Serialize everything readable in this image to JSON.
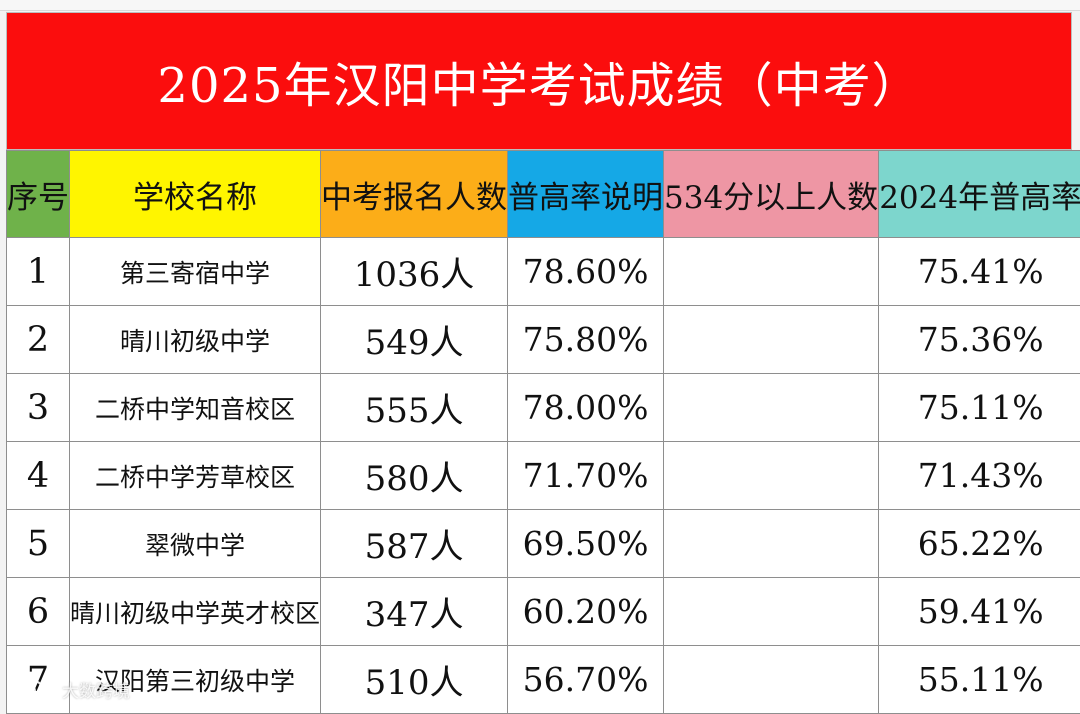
{
  "title": "2025年汉阳中学考试成绩（中考）",
  "colors": {
    "title_bg": "#fb0d0d",
    "headers": [
      "#6fb24a",
      "#fff500",
      "#fcad18",
      "#15a8e6",
      "#ee96a4",
      "#7dd6cd"
    ]
  },
  "headers": [
    "序号",
    "学校名称",
    "中考报名人数",
    "普高率说明",
    "534分以上人数",
    "2024年普高率"
  ],
  "rows": [
    {
      "idx": "1",
      "school": "第三寄宿中学",
      "count": "1036人",
      "rate": "78.60%",
      "above534": "",
      "rate2024": "75.41%"
    },
    {
      "idx": "2",
      "school": "晴川初级中学",
      "count": "549人",
      "rate": "75.80%",
      "above534": "",
      "rate2024": "75.36%"
    },
    {
      "idx": "3",
      "school": "二桥中学知音校区",
      "count": "555人",
      "rate": "78.00%",
      "above534": "",
      "rate2024": "75.11%"
    },
    {
      "idx": "4",
      "school": "二桥中学芳草校区",
      "count": "580人",
      "rate": "71.70%",
      "above534": "",
      "rate2024": "71.43%"
    },
    {
      "idx": "5",
      "school": "翠微中学",
      "count": "587人",
      "rate": "69.50%",
      "above534": "",
      "rate2024": "65.22%"
    },
    {
      "idx": "6",
      "school": "晴川初级中学英才校区",
      "count": "347人",
      "rate": "60.20%",
      "above534": "",
      "rate2024": "59.41%"
    },
    {
      "idx": "7",
      "school": "汉阳第三初级中学",
      "count": "510人",
      "rate": "56.70%",
      "above534": "",
      "rate2024": "55.11%"
    }
  ],
  "watermark": {
    "icon": "weibo-logo-icon",
    "text": "大数跨境"
  }
}
